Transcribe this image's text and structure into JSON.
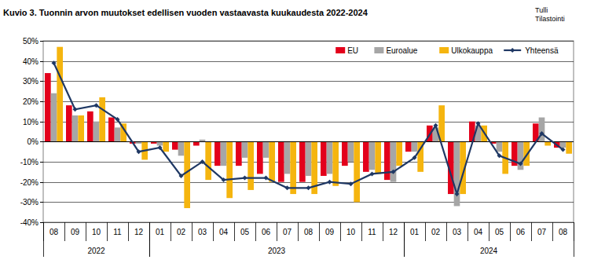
{
  "chart_data": {
    "type": "bar",
    "title": "Kuvio 3. Tuonnin arvon muutokset edellisen vuoden vastaavasta kuukaudesta 2022-2024",
    "source": [
      "Tulli",
      "Tilastointi"
    ],
    "categories": [
      "08",
      "09",
      "10",
      "11",
      "12",
      "01",
      "02",
      "03",
      "04",
      "05",
      "06",
      "07",
      "08",
      "09",
      "10",
      "11",
      "12",
      "01",
      "02",
      "03",
      "04",
      "05",
      "06",
      "07",
      "08"
    ],
    "x_years": [
      "2022",
      "2022",
      "2022",
      "2022",
      "2022",
      "2023",
      "2023",
      "2023",
      "2023",
      "2023",
      "2023",
      "2023",
      "2023",
      "2023",
      "2023",
      "2023",
      "2023",
      "2024",
      "2024",
      "2024",
      "2024",
      "2024",
      "2024",
      "2024",
      "2024"
    ],
    "series": [
      {
        "name": "EU",
        "color": "#e3001b",
        "type": "bar",
        "values": [
          34,
          18,
          15,
          12,
          -1,
          -1,
          -4,
          -2,
          -12,
          -12,
          -16,
          -20,
          -20,
          -17,
          -12,
          -15,
          -19,
          -5,
          8,
          -26,
          10,
          -1,
          -12,
          9,
          -3
        ]
      },
      {
        "name": "Euroalue",
        "color": "#a6a6a6",
        "type": "bar",
        "values": [
          24,
          13,
          10,
          7,
          -1,
          -2,
          -7,
          1,
          -12,
          -8,
          -8,
          -16,
          -17,
          -16,
          -10,
          -14,
          -20,
          -5,
          7,
          -32,
          8,
          -5,
          -14,
          12,
          -3
        ]
      },
      {
        "name": "Ulkokauppa",
        "color": "#f5b50f",
        "type": "bar",
        "values": [
          47,
          13,
          22,
          9,
          -9,
          -5,
          -33,
          -19,
          -28,
          -24,
          -20,
          -26,
          -26,
          -22,
          -30,
          -16,
          -12,
          -15,
          18,
          -26,
          8,
          -16,
          -12,
          -2,
          -6
        ]
      },
      {
        "name": "Yhteensä",
        "color": "#1f3864",
        "type": "line",
        "marker": "diamond",
        "values": [
          39,
          16,
          18,
          11,
          -5,
          -3,
          -17,
          -10,
          -19,
          -18,
          -18,
          -23,
          -23,
          -20,
          -21,
          -16,
          -15,
          -8,
          8,
          -26,
          9,
          -7,
          -11,
          4,
          -4
        ]
      }
    ],
    "ylim": [
      -40,
      50
    ],
    "yticks": [
      {
        "value": -40,
        "label": "-40%"
      },
      {
        "value": -30,
        "label": "-30%"
      },
      {
        "value": -20,
        "label": "-20%"
      },
      {
        "value": -10,
        "label": "-10%"
      },
      {
        "value": 0,
        "label": "0%"
      },
      {
        "value": 10,
        "label": "10%"
      },
      {
        "value": 20,
        "label": "20%"
      },
      {
        "value": 30,
        "label": "30%"
      },
      {
        "value": 40,
        "label": "40%"
      },
      {
        "value": 50,
        "label": "50%"
      }
    ],
    "grid": true,
    "legend": "top-right"
  }
}
